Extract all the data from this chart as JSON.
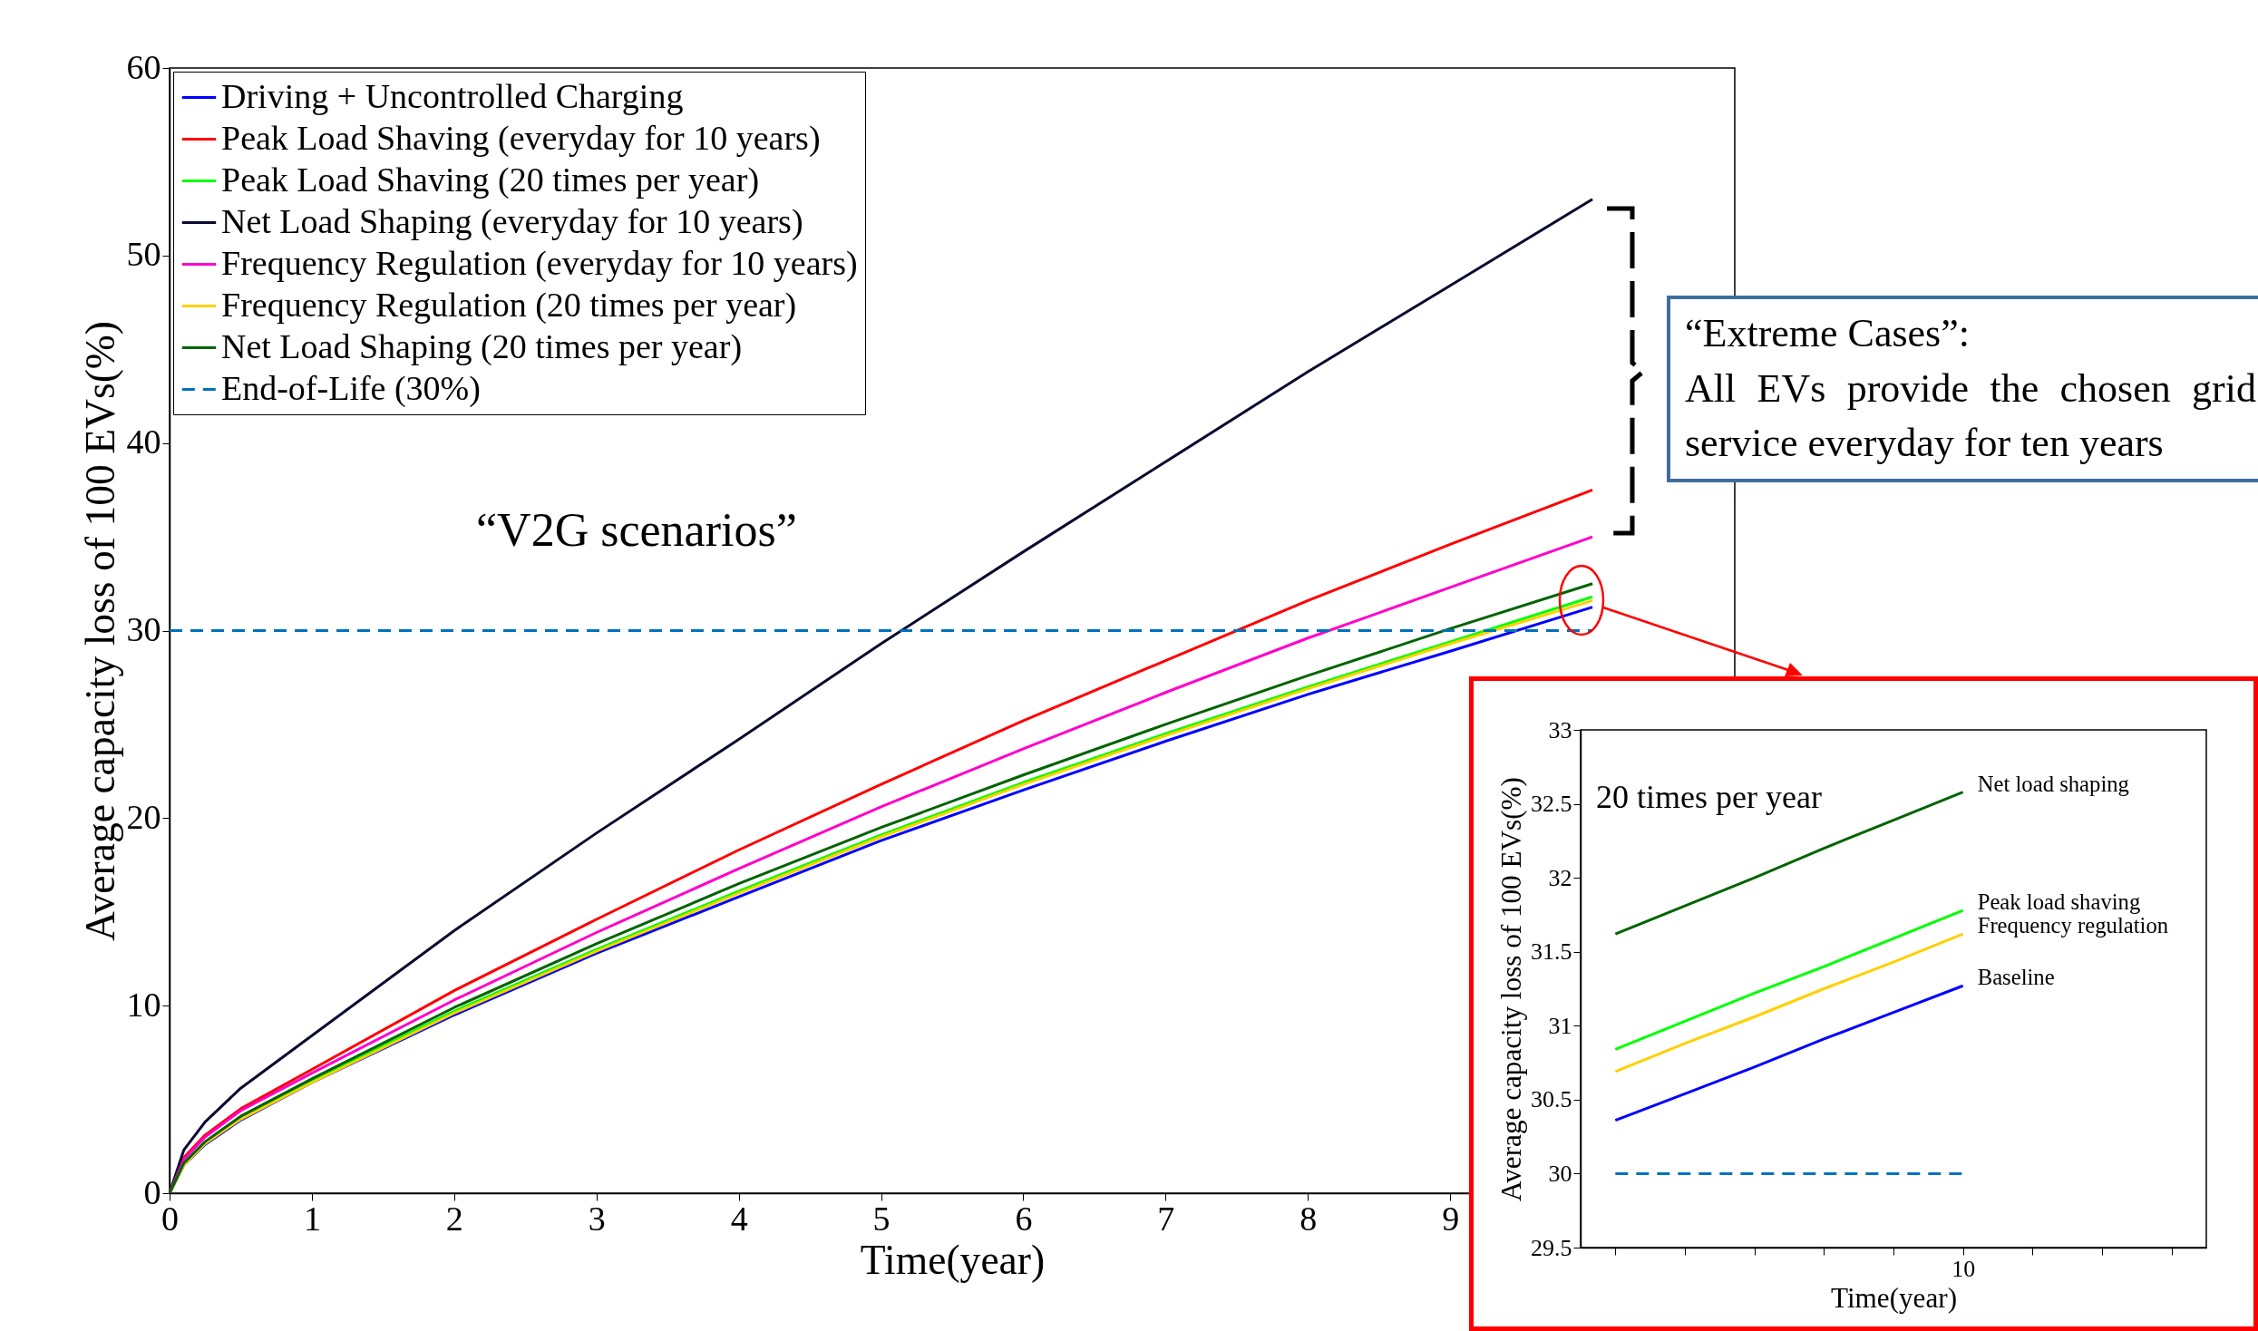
{
  "chart_data": [
    {
      "type": "line",
      "xlabel": "Time(year)",
      "ylabel": "Average capacity loss of 100 EVs(%)",
      "xlim": [
        0,
        11
      ],
      "xticks": [
        0,
        1,
        2,
        3,
        4,
        5,
        6,
        7,
        8,
        9
      ],
      "ylim": [
        0,
        60
      ],
      "yticks": [
        0,
        10,
        20,
        30,
        40,
        50,
        60
      ],
      "x": [
        0,
        0.1,
        0.25,
        0.5,
        1,
        2,
        3,
        4,
        5,
        6,
        7,
        8,
        9,
        10
      ],
      "legend": "top left",
      "annotations": [
        "“V2G scenarios”",
        "“Extreme Cases”:",
        "All EVs provide the chosen grid service everyday for ten years"
      ],
      "series": [
        {
          "name": "Driving + Uncontrolled Charging",
          "color": "#0000ff",
          "values": [
            0,
            1.5,
            2.6,
            3.9,
            5.9,
            9.5,
            12.8,
            15.8,
            18.8,
            21.5,
            24.1,
            26.6,
            28.9,
            31.25
          ]
        },
        {
          "name": "Peak Load Shaving (everyday for 10 years)",
          "color": "#ff0000",
          "values": [
            0,
            1.9,
            3.1,
            4.5,
            6.6,
            10.8,
            14.6,
            18.3,
            21.8,
            25.2,
            28.4,
            31.6,
            34.6,
            37.5
          ]
        },
        {
          "name": "Peak Load Shaving (20 times per year)",
          "color": "#00ff00",
          "values": [
            null,
            null,
            null,
            4.0,
            6.0,
            9.7,
            13.0,
            16.1,
            19.1,
            21.9,
            24.5,
            27.0,
            29.4,
            31.8
          ]
        },
        {
          "name": "Net Load Shaping (everyday for 10 years)",
          "color": "#0a0a30",
          "values": [
            0,
            2.3,
            3.8,
            5.6,
            8.4,
            14.0,
            19.2,
            24.2,
            29.3,
            34.2,
            39.0,
            43.8,
            48.4,
            53.0
          ]
        },
        {
          "name": "Frequency Regulation (everyday for 10 years)",
          "color": "#ff00cc",
          "values": [
            0,
            1.8,
            3.0,
            4.4,
            6.4,
            10.3,
            13.9,
            17.3,
            20.6,
            23.7,
            26.7,
            29.6,
            32.3,
            35.0
          ]
        },
        {
          "name": "Frequency Regulation (20 times per year)",
          "color": "#ffd000",
          "values": [
            0,
            1.5,
            2.65,
            3.95,
            5.9,
            9.6,
            12.9,
            16.0,
            19.0,
            21.8,
            24.4,
            26.9,
            29.3,
            31.6
          ]
        },
        {
          "name": "Net Load Shaping (20 times per year)",
          "color": "#006400",
          "values": [
            0,
            1.6,
            2.75,
            4.1,
            6.1,
            9.9,
            13.3,
            16.5,
            19.5,
            22.3,
            25.0,
            27.6,
            30.1,
            32.5
          ]
        },
        {
          "name": "End-of-Life (30%)",
          "color": "#0072bd",
          "line_style": "dashed",
          "x": [
            0,
            10
          ],
          "values": [
            30,
            30
          ]
        }
      ]
    },
    {
      "type": "line",
      "xlabel": "Time(year)",
      "ylabel": "Average capacity loss of 100 EVs(%)",
      "categories": [
        null,
        null,
        null,
        null,
        null,
        "10",
        null,
        null,
        null
      ],
      "ylim": [
        29.5,
        33
      ],
      "yticks": [
        29.5,
        30,
        30.5,
        31,
        31.5,
        32,
        32.5,
        33
      ],
      "annotations": [
        "20 times per year"
      ],
      "series": [
        {
          "name": "Net load shaping",
          "color": "#006400",
          "values": [
            31.62,
            31.81,
            32.0,
            32.2,
            32.39,
            32.58,
            null,
            null,
            null
          ]
        },
        {
          "name": "Peak load shaving",
          "color": "#00ff00",
          "values": [
            30.84,
            31.03,
            31.22,
            31.4,
            31.59,
            31.78,
            null,
            null,
            null
          ]
        },
        {
          "name": "Frequency regulation",
          "color": "#ffd000",
          "values": [
            30.69,
            30.88,
            31.06,
            31.25,
            31.43,
            31.62,
            null,
            null,
            null
          ]
        },
        {
          "name": "Baseline",
          "color": "#0000ff",
          "values": [
            30.36,
            30.54,
            30.72,
            30.91,
            31.09,
            31.27,
            null,
            null,
            null
          ]
        },
        {
          "color": "#0072bd",
          "line_style": "dashed",
          "values": [
            30,
            30,
            30,
            30,
            30,
            30,
            null,
            null,
            null
          ]
        }
      ]
    }
  ]
}
